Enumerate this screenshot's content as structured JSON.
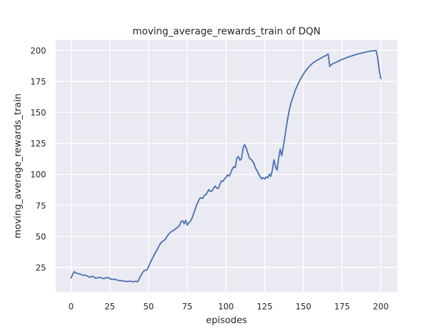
{
  "chart_data": {
    "type": "line",
    "title": "moving_average_rewards_train of DQN",
    "xlabel": "episodes",
    "ylabel": "moving_average_rewards_train",
    "x_ticks": [
      0,
      25,
      50,
      75,
      100,
      125,
      150,
      175,
      200
    ],
    "y_ticks": [
      25,
      50,
      75,
      100,
      125,
      150,
      175,
      200
    ],
    "xlim": [
      -10,
      210.7
    ],
    "ylim": [
      5,
      208.5
    ],
    "grid": true,
    "legend_position": "none",
    "colors": {
      "line": "#4C72B0",
      "plot_background": "#EAEAF2",
      "grid": "#FFFFFF",
      "text": "#262626"
    },
    "series": [
      {
        "name": "moving_average_rewards_train",
        "x_start": 0,
        "x_step": 1,
        "values": [
          16.5,
          19.5,
          21.5,
          20.6,
          20.0,
          19.8,
          19.6,
          18.9,
          18.5,
          18.9,
          18.2,
          17.6,
          17.1,
          17.5,
          17.8,
          16.9,
          16.2,
          16.6,
          17.1,
          16.8,
          16.3,
          15.9,
          16.4,
          16.6,
          17.0,
          15.8,
          15.4,
          15.2,
          15.6,
          15.0,
          14.7,
          14.5,
          14.3,
          14.1,
          13.9,
          13.8,
          13.6,
          13.7,
          13.9,
          13.6,
          13.5,
          13.6,
          13.8,
          13.4,
          16.0,
          18.5,
          20.5,
          22.3,
          22.6,
          23.2,
          25.5,
          28.5,
          31.0,
          33.5,
          36.0,
          38.2,
          40.5,
          43.0,
          44.8,
          46.0,
          46.8,
          48.0,
          50.0,
          51.8,
          53.0,
          54.2,
          54.8,
          55.6,
          56.6,
          57.6,
          59.0,
          62.0,
          62.6,
          60.2,
          63.0,
          59.2,
          61.0,
          62.2,
          64.6,
          68.0,
          71.5,
          75.2,
          78.0,
          80.5,
          81.2,
          80.6,
          83.2,
          83.6,
          85.6,
          87.8,
          86.2,
          86.8,
          88.8,
          90.6,
          89.0,
          88.6,
          91.6,
          94.8,
          94.4,
          96.2,
          97.6,
          99.6,
          98.6,
          101.0,
          104.2,
          106.2,
          105.6,
          113.2,
          114.5,
          111.4,
          112.6,
          121.0,
          124.0,
          121.4,
          117.8,
          113.4,
          112.2,
          111.0,
          109.0,
          105.2,
          103.2,
          100.6,
          98.4,
          96.4,
          97.4,
          96.2,
          98.0,
          97.2,
          100.2,
          98.4,
          104.0,
          111.8,
          106.0,
          103.6,
          113.0,
          120.4,
          115.0,
          122.0,
          130.0,
          138.5,
          146.0,
          152.5,
          157.5,
          161.5,
          165.0,
          168.5,
          171.5,
          174.2,
          176.6,
          178.8,
          180.8,
          182.8,
          184.4,
          186.0,
          187.4,
          188.6,
          189.6,
          190.6,
          191.4,
          192.2,
          192.8,
          193.6,
          194.2,
          194.9,
          195.5,
          196.2,
          197.3,
          187.0,
          188.5,
          189.2,
          189.8,
          190.4,
          191.0,
          191.6,
          192.2,
          192.7,
          193.2,
          193.7,
          194.2,
          194.7,
          195.1,
          195.5,
          195.9,
          196.3,
          196.7,
          197.1,
          197.4,
          197.7,
          198.0,
          198.3,
          198.6,
          198.9,
          199.2,
          199.4,
          199.6,
          199.7,
          199.8,
          199.9,
          194.0,
          184.0,
          177.3
        ]
      }
    ]
  }
}
